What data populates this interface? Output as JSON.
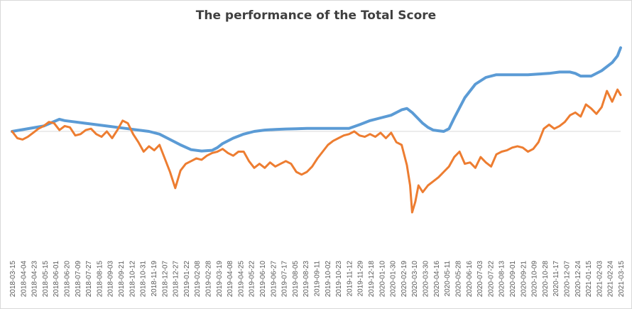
{
  "chart_data": {
    "type": "line",
    "title": "The performance of the Total Score",
    "xlabel": "",
    "ylabel": "",
    "y_axis_labels_shown": false,
    "grid": false,
    "legend": "none",
    "baseline_value": 0,
    "x_tick_labels": [
      "2018-03-15",
      "2018-04-04",
      "2018-04-23",
      "2018-05-15",
      "2018-06-01",
      "2018-06-20",
      "2018-07-09",
      "2018-07-27",
      "2018-08-15",
      "2018-09-03",
      "2018-09-21",
      "2018-10-12",
      "2018-10-31",
      "2018-11-19",
      "2018-12-07",
      "2018-12-27",
      "2019-01-22",
      "2019-02-08",
      "2019-02-28",
      "2019-03-19",
      "2019-04-08",
      "2019-04-25",
      "2019-05-22",
      "2019-06-10",
      "2019-06-27",
      "2019-07-17",
      "2019-08-05",
      "2019-08-23",
      "2019-09-11",
      "2019-10-02",
      "2019-10-23",
      "2019-11-12",
      "2019-11-29",
      "2019-12-18",
      "2020-01-10",
      "2020-01-30",
      "2020-02-19",
      "2020-03-10",
      "2020-03-30",
      "2020-04-16",
      "2020-05-11",
      "2020-05-28",
      "2020-06-16",
      "2020-07-03",
      "2020-07-22",
      "2020-08-13",
      "2020-09-01",
      "2020-09-21",
      "2020-10-09",
      "2020-10-28",
      "2020-11-17",
      "2020-12-07",
      "2020-12-24",
      "2021-01-15",
      "2021-02-03",
      "2021-02-24",
      "2021-03-15"
    ],
    "colors": {
      "blue": "#5b9bd5",
      "orange": "#ed7d31",
      "baseline": "#d9d9d9"
    },
    "series": [
      {
        "color": "#5b9bd5",
        "x": [
          0,
          3,
          4.5,
          5,
          6,
          7,
          8,
          9,
          10,
          11,
          12,
          13,
          14,
          15,
          16,
          17,
          18,
          19,
          19.5,
          20,
          21,
          22,
          23,
          24,
          25,
          26,
          27,
          28,
          29,
          30,
          31,
          32,
          33,
          34,
          35,
          36,
          37,
          37.5,
          38,
          39,
          39.5,
          40,
          40.5,
          41,
          41.5,
          42,
          43,
          44,
          45,
          46,
          47,
          48,
          49,
          50,
          51,
          52,
          53,
          53.5,
          54,
          55,
          56,
          57,
          57.5,
          57.8
        ],
        "y": [
          0,
          0.04,
          0.09,
          0.08,
          0.07,
          0.06,
          0.05,
          0.04,
          0.03,
          0.02,
          0.01,
          0,
          -0.02,
          -0.06,
          -0.1,
          -0.135,
          -0.145,
          -0.14,
          -0.12,
          -0.09,
          -0.05,
          -0.02,
          0,
          0.01,
          0.015,
          0.018,
          0.02,
          0.022,
          0.022,
          0.022,
          0.022,
          0.022,
          0.05,
          0.08,
          0.1,
          0.12,
          0.16,
          0.17,
          0.14,
          0.06,
          0.03,
          0.01,
          0.005,
          0,
          0.02,
          0.1,
          0.25,
          0.35,
          0.4,
          0.42,
          0.42,
          0.42,
          0.42,
          0.425,
          0.43,
          0.44,
          0.44,
          0.43,
          0.41,
          0.41,
          0.45,
          0.51,
          0.56,
          0.62
        ]
      },
      {
        "color": "#ed7d31",
        "x": [
          0,
          0.5,
          1,
          1.5,
          2,
          2.5,
          3,
          3.5,
          4,
          4.5,
          5,
          5.5,
          6,
          6.5,
          7,
          7.5,
          8,
          8.5,
          9,
          9.5,
          10,
          10.5,
          11,
          11.5,
          12,
          12.5,
          13,
          13.5,
          14,
          14.5,
          15,
          15.5,
          16,
          16.5,
          17,
          17.5,
          18,
          18.5,
          19,
          19.5,
          20,
          20.5,
          21,
          21.5,
          22,
          22.5,
          23,
          23.5,
          24,
          24.5,
          25,
          25.5,
          26,
          26.5,
          27,
          27.5,
          28,
          28.5,
          29,
          29.5,
          30,
          30.5,
          31,
          31.5,
          32,
          32.5,
          33,
          33.5,
          34,
          34.5,
          35,
          35.5,
          36,
          36.5,
          37,
          37.5,
          37.8,
          38,
          38.3,
          38.6,
          39,
          39.5,
          40,
          40.5,
          41,
          41.5,
          42,
          42.5,
          43,
          43.5,
          44,
          44.5,
          45,
          45.5,
          46,
          46.5,
          47,
          47.5,
          48,
          48.5,
          49,
          49.5,
          50,
          50.5,
          51,
          51.5,
          52,
          52.5,
          53,
          53.5,
          54,
          54.5,
          55,
          55.5,
          56,
          56.5,
          57,
          57.5,
          57.8
        ],
        "y": [
          0,
          -0.05,
          -0.06,
          -0.04,
          -0.01,
          0.02,
          0.04,
          0.07,
          0.06,
          0.01,
          0.04,
          0.03,
          -0.03,
          -0.02,
          0.01,
          0.02,
          -0.02,
          -0.04,
          0,
          -0.05,
          0.01,
          0.08,
          0.06,
          -0.02,
          -0.08,
          -0.15,
          -0.11,
          -0.14,
          -0.1,
          -0.2,
          -0.3,
          -0.42,
          -0.29,
          -0.24,
          -0.22,
          -0.2,
          -0.21,
          -0.18,
          -0.16,
          -0.15,
          -0.13,
          -0.16,
          -0.18,
          -0.15,
          -0.15,
          -0.22,
          -0.27,
          -0.24,
          -0.27,
          -0.23,
          -0.26,
          -0.24,
          -0.22,
          -0.24,
          -0.3,
          -0.32,
          -0.3,
          -0.26,
          -0.2,
          -0.15,
          -0.1,
          -0.07,
          -0.05,
          -0.03,
          -0.02,
          0,
          -0.03,
          -0.04,
          -0.02,
          -0.04,
          -0.01,
          -0.05,
          -0.01,
          -0.08,
          -0.1,
          -0.25,
          -0.4,
          -0.6,
          -0.52,
          -0.4,
          -0.45,
          -0.4,
          -0.37,
          -0.34,
          -0.3,
          -0.26,
          -0.19,
          -0.15,
          -0.24,
          -0.23,
          -0.27,
          -0.19,
          -0.23,
          -0.26,
          -0.17,
          -0.15,
          -0.14,
          -0.12,
          -0.11,
          -0.12,
          -0.15,
          -0.13,
          -0.08,
          0.02,
          0.05,
          0.02,
          0.04,
          0.07,
          0.12,
          0.14,
          0.11,
          0.2,
          0.17,
          0.13,
          0.18,
          0.3,
          0.22,
          0.31,
          0.27
        ]
      }
    ]
  }
}
